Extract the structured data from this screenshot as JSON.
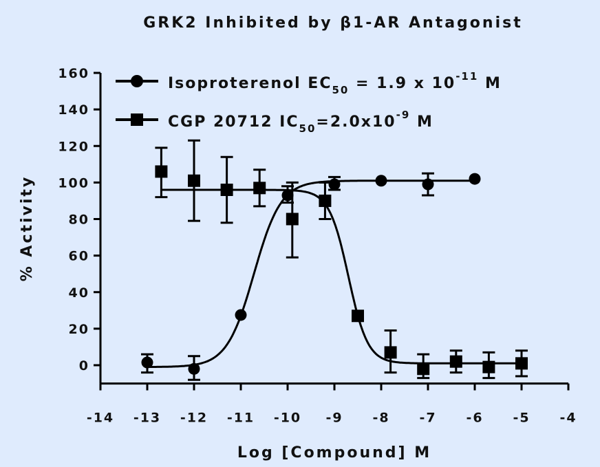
{
  "chart_data": {
    "type": "scatter",
    "title": "GRK2 Inhibited by β1-AR Antagonist",
    "xlabel": "Log [Compound] M",
    "ylabel": "% Activity",
    "xlim": [
      -14,
      -4
    ],
    "ylim": [
      -10,
      160
    ],
    "xticks": [
      -14,
      -13,
      -12,
      -11,
      -10,
      -9,
      -8,
      -7,
      -6,
      -5,
      -4
    ],
    "yticks": [
      0,
      20,
      40,
      60,
      80,
      100,
      120,
      140,
      160
    ],
    "grid": false,
    "legend_position": "top-right",
    "series": [
      {
        "name": "Isoproterenol EC50 = 1.9 x 10-11 M",
        "legend": {
          "main": "Isoproterenol EC",
          "sub": "50",
          "mid": " = 1.9 x 10",
          "sup": "-11",
          "end": " M"
        },
        "marker": "circle",
        "x": [
          -13,
          -12,
          -11,
          -10,
          -9,
          -8,
          -7,
          -6
        ],
        "y": [
          1.5,
          -2,
          27.5,
          93,
          99,
          101,
          99,
          102
        ],
        "err_low": [
          -4,
          -8,
          27.5,
          89,
          96,
          101,
          93,
          102
        ],
        "err_high": [
          6,
          5,
          27.5,
          98,
          103,
          101,
          105,
          102
        ],
        "fit": {
          "bottom": -1,
          "top": 101,
          "log_ec50": -10.72,
          "hill": 1.5,
          "range": [
            -13,
            -6
          ]
        }
      },
      {
        "name": "CGP 20712 IC50=2.0x10-9 M",
        "legend": {
          "main": "CGP 20712 IC",
          "sub": "50",
          "mid": "=2.0x10",
          "sup": "-9",
          "end": " M"
        },
        "marker": "square",
        "x": [
          -12.7,
          -12,
          -11.3,
          -10.6,
          -9.9,
          -9.2,
          -8.5,
          -7.8,
          -7.1,
          -6.4,
          -5.7,
          -5.0
        ],
        "y": [
          106,
          101,
          96,
          97,
          80,
          90,
          27,
          7,
          -2,
          2,
          -1,
          1
        ],
        "err_low": [
          92,
          79,
          78,
          87,
          59,
          80,
          27,
          -4,
          -7,
          -4,
          -7,
          -6
        ],
        "err_high": [
          119,
          123,
          114,
          107,
          100,
          100,
          27,
          19,
          6,
          8,
          7,
          8
        ],
        "fit": {
          "bottom": 1,
          "top": 96,
          "log_ec50": -8.7,
          "hill": -2.1,
          "range": [
            -12.7,
            -5
          ]
        }
      }
    ]
  }
}
